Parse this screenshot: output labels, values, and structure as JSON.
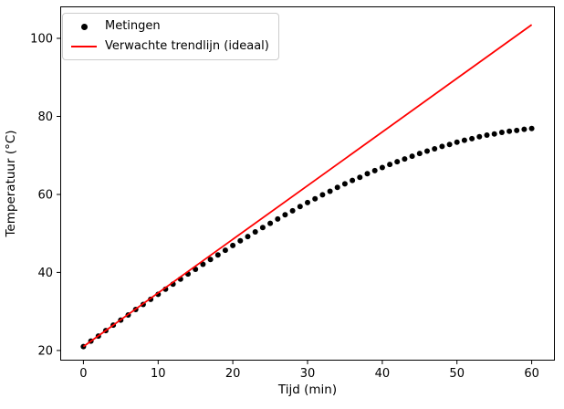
{
  "figure": {
    "background": "#ffffff"
  },
  "chart_data": {
    "type": "scatter+line",
    "title": "",
    "xlabel": "Tijd (min)",
    "ylabel": "Temperatuur (°C)",
    "x_ticks": [
      0,
      10,
      20,
      30,
      40,
      50,
      60
    ],
    "y_ticks": [
      20,
      40,
      60,
      80,
      100
    ],
    "xlim": [
      -3.1,
      63.1
    ],
    "ylim": [
      17.4,
      108.2
    ],
    "grid": false,
    "legend": {
      "position": "upper-left",
      "items": [
        {
          "label": "Metingen",
          "marker": "dot",
          "color": "#000000"
        },
        {
          "label": "Verwachte trendlijn (ideaal)",
          "marker": "line",
          "color": "#ff0000"
        }
      ]
    },
    "series": [
      {
        "name": "Metingen",
        "type": "scatter",
        "color": "#000000",
        "x": [
          0,
          1,
          2,
          3,
          4,
          5,
          6,
          7,
          8,
          9,
          10,
          11,
          12,
          13,
          14,
          15,
          16,
          17,
          18,
          19,
          20,
          21,
          22,
          23,
          24,
          25,
          26,
          27,
          28,
          29,
          30,
          31,
          32,
          33,
          34,
          35,
          36,
          37,
          38,
          39,
          40,
          41,
          42,
          43,
          44,
          45,
          46,
          47,
          48,
          49,
          50,
          51,
          52,
          53,
          54,
          55,
          56,
          57,
          58,
          59,
          60
        ],
        "y": [
          21.0,
          22.4,
          23.7,
          25.1,
          26.5,
          27.8,
          29.1,
          30.5,
          31.8,
          33.1,
          34.4,
          35.7,
          37.0,
          38.3,
          39.6,
          40.8,
          42.1,
          43.3,
          44.5,
          45.7,
          46.9,
          48.1,
          49.2,
          50.4,
          51.5,
          52.6,
          53.7,
          54.8,
          55.8,
          56.9,
          57.9,
          58.9,
          59.9,
          60.8,
          61.8,
          62.7,
          63.6,
          64.4,
          65.3,
          66.1,
          66.9,
          67.7,
          68.4,
          69.1,
          69.8,
          70.5,
          71.1,
          71.7,
          72.3,
          72.8,
          73.4,
          73.9,
          74.3,
          74.8,
          75.2,
          75.5,
          75.9,
          76.2,
          76.4,
          76.7,
          76.9
        ]
      },
      {
        "name": "Verwachte trendlijn (ideaal)",
        "type": "line",
        "color": "#ff0000",
        "x": [
          0,
          60
        ],
        "y": [
          21,
          103.5
        ]
      }
    ]
  }
}
